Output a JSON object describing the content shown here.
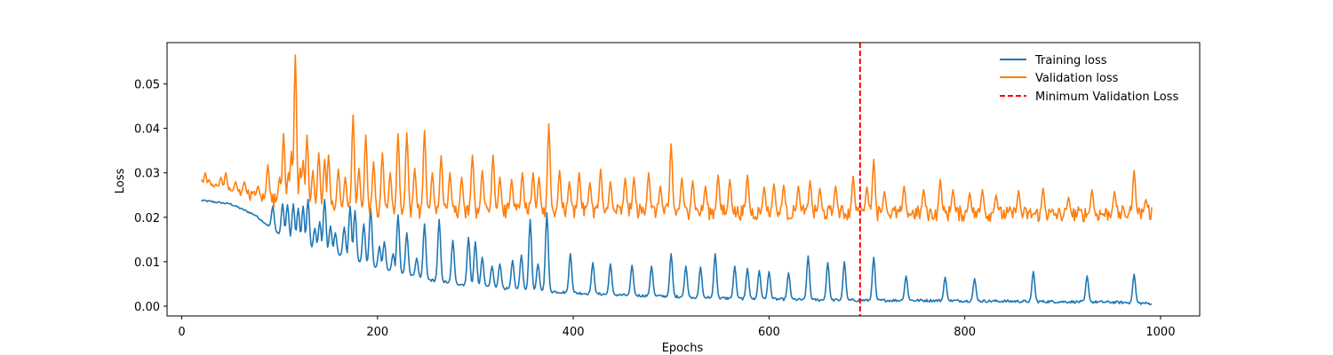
{
  "chart_data": {
    "type": "line",
    "title": "",
    "xlabel": "Epochs",
    "ylabel": "Loss",
    "xlim": [
      -15,
      1040
    ],
    "ylim": [
      -0.0022,
      0.0593
    ],
    "xticks": [
      0,
      200,
      400,
      600,
      800,
      1000
    ],
    "yticks": [
      0.0,
      0.01,
      0.02,
      0.03,
      0.04,
      0.05
    ],
    "xtick_labels": [
      "0",
      "200",
      "400",
      "600",
      "800",
      "1000"
    ],
    "ytick_labels": [
      "0.00",
      "0.01",
      "0.02",
      "0.03",
      "0.04",
      "0.05"
    ],
    "grid": false,
    "legend_position": "top-right",
    "x_range": [
      20,
      991
    ],
    "series": [
      {
        "name": "Training loss",
        "color": "#1f77b4",
        "style": "solid",
        "anchors": [
          [
            20,
            0.0238
          ],
          [
            50,
            0.023
          ],
          [
            75,
            0.0205
          ],
          [
            100,
            0.016
          ],
          [
            130,
            0.013
          ],
          [
            160,
            0.0115
          ],
          [
            200,
            0.0085
          ],
          [
            250,
            0.006
          ],
          [
            300,
            0.0045
          ],
          [
            350,
            0.0037
          ],
          [
            400,
            0.003
          ],
          [
            450,
            0.0025
          ],
          [
            500,
            0.0022
          ],
          [
            550,
            0.0018
          ],
          [
            600,
            0.0016
          ],
          [
            650,
            0.0014
          ],
          [
            700,
            0.0013
          ],
          [
            750,
            0.0013
          ],
          [
            800,
            0.0012
          ],
          [
            850,
            0.0011
          ],
          [
            900,
            0.001
          ],
          [
            950,
            0.0009
          ],
          [
            991,
            0.0006
          ]
        ],
        "spikes": [
          [
            93,
            0.0225
          ],
          [
            103,
            0.023
          ],
          [
            108,
            0.0228
          ],
          [
            114,
            0.023
          ],
          [
            119,
            0.022
          ],
          [
            124,
            0.0225
          ],
          [
            129,
            0.024
          ],
          [
            136,
            0.0175
          ],
          [
            141,
            0.019
          ],
          [
            146,
            0.024
          ],
          [
            152,
            0.018
          ],
          [
            157,
            0.0165
          ],
          [
            166,
            0.0178
          ],
          [
            172,
            0.0225
          ],
          [
            177,
            0.0215
          ],
          [
            186,
            0.0185
          ],
          [
            193,
            0.022
          ],
          [
            202,
            0.0135
          ],
          [
            207,
            0.0145
          ],
          [
            216,
            0.0118
          ],
          [
            221,
            0.0205
          ],
          [
            230,
            0.0165
          ],
          [
            240,
            0.0108
          ],
          [
            248,
            0.0185
          ],
          [
            263,
            0.0195
          ],
          [
            277,
            0.0148
          ],
          [
            293,
            0.0155
          ],
          [
            300,
            0.0145
          ],
          [
            307,
            0.011
          ],
          [
            317,
            0.009
          ],
          [
            325,
            0.0095
          ],
          [
            338,
            0.0103
          ],
          [
            347,
            0.0115
          ],
          [
            356,
            0.0195
          ],
          [
            364,
            0.0095
          ],
          [
            373,
            0.021
          ],
          [
            397,
            0.0118
          ],
          [
            420,
            0.0098
          ],
          [
            438,
            0.0095
          ],
          [
            460,
            0.0092
          ],
          [
            480,
            0.009
          ],
          [
            500,
            0.0118
          ],
          [
            515,
            0.009
          ],
          [
            530,
            0.0088
          ],
          [
            545,
            0.0118
          ],
          [
            565,
            0.009
          ],
          [
            578,
            0.0085
          ],
          [
            590,
            0.008
          ],
          [
            600,
            0.0078
          ],
          [
            620,
            0.0075
          ],
          [
            640,
            0.0113
          ],
          [
            660,
            0.0098
          ],
          [
            677,
            0.01
          ],
          [
            707,
            0.011
          ],
          [
            740,
            0.0068
          ],
          [
            780,
            0.0065
          ],
          [
            810,
            0.0062
          ],
          [
            870,
            0.0078
          ],
          [
            925,
            0.0068
          ],
          [
            973,
            0.0072
          ]
        ]
      },
      {
        "name": "Validation loss",
        "color": "#ff7f0e",
        "style": "solid",
        "anchors": [
          [
            20,
            0.027
          ],
          [
            60,
            0.0255
          ],
          [
            80,
            0.0245
          ],
          [
            110,
            0.023
          ],
          [
            140,
            0.0222
          ],
          [
            200,
            0.0215
          ],
          [
            300,
            0.0215
          ],
          [
            400,
            0.0215
          ],
          [
            500,
            0.0213
          ],
          [
            600,
            0.021
          ],
          [
            700,
            0.021
          ],
          [
            800,
            0.0208
          ],
          [
            900,
            0.0206
          ],
          [
            991,
            0.021
          ]
        ],
        "spikes": [
          [
            20,
            0.0285
          ],
          [
            24,
            0.03
          ],
          [
            28,
            0.0285
          ],
          [
            35,
            0.0275
          ],
          [
            40,
            0.029
          ],
          [
            45,
            0.03
          ],
          [
            55,
            0.028
          ],
          [
            64,
            0.028
          ],
          [
            78,
            0.027
          ],
          [
            88,
            0.0318
          ],
          [
            100,
            0.029
          ],
          [
            104,
            0.0388
          ],
          [
            109,
            0.03
          ],
          [
            112,
            0.0348
          ],
          [
            116,
            0.0565
          ],
          [
            121,
            0.031
          ],
          [
            124,
            0.0328
          ],
          [
            128,
            0.0385
          ],
          [
            134,
            0.0305
          ],
          [
            140,
            0.0345
          ],
          [
            146,
            0.033
          ],
          [
            150,
            0.034
          ],
          [
            160,
            0.0308
          ],
          [
            167,
            0.029
          ],
          [
            175,
            0.043
          ],
          [
            181,
            0.031
          ],
          [
            188,
            0.0385
          ],
          [
            196,
            0.0325
          ],
          [
            205,
            0.0345
          ],
          [
            213,
            0.03
          ],
          [
            221,
            0.0388
          ],
          [
            230,
            0.039
          ],
          [
            238,
            0.031
          ],
          [
            248,
            0.0395
          ],
          [
            256,
            0.03
          ],
          [
            265,
            0.0338
          ],
          [
            274,
            0.03
          ],
          [
            286,
            0.029
          ],
          [
            297,
            0.034
          ],
          [
            307,
            0.0305
          ],
          [
            318,
            0.034
          ],
          [
            325,
            0.029
          ],
          [
            337,
            0.0285
          ],
          [
            348,
            0.03
          ],
          [
            359,
            0.03
          ],
          [
            365,
            0.029
          ],
          [
            375,
            0.041
          ],
          [
            386,
            0.0305
          ],
          [
            396,
            0.028
          ],
          [
            406,
            0.03
          ],
          [
            417,
            0.0278
          ],
          [
            428,
            0.0308
          ],
          [
            438,
            0.028
          ],
          [
            453,
            0.0288
          ],
          [
            462,
            0.029
          ],
          [
            477,
            0.03
          ],
          [
            489,
            0.027
          ],
          [
            500,
            0.0365
          ],
          [
            511,
            0.0288
          ],
          [
            522,
            0.0282
          ],
          [
            535,
            0.027
          ],
          [
            548,
            0.0295
          ],
          [
            560,
            0.0285
          ],
          [
            578,
            0.0295
          ],
          [
            595,
            0.0268
          ],
          [
            605,
            0.0275
          ],
          [
            615,
            0.0272
          ],
          [
            630,
            0.027
          ],
          [
            642,
            0.0282
          ],
          [
            652,
            0.0265
          ],
          [
            668,
            0.027
          ],
          [
            686,
            0.0292
          ],
          [
            693,
            0.0225
          ],
          [
            700,
            0.0268
          ],
          [
            707,
            0.033
          ],
          [
            718,
            0.0258
          ],
          [
            738,
            0.027
          ],
          [
            758,
            0.0262
          ],
          [
            775,
            0.0285
          ],
          [
            788,
            0.0262
          ],
          [
            805,
            0.0255
          ],
          [
            818,
            0.0262
          ],
          [
            832,
            0.025
          ],
          [
            855,
            0.026
          ],
          [
            880,
            0.0265
          ],
          [
            906,
            0.0245
          ],
          [
            930,
            0.0262
          ],
          [
            953,
            0.0258
          ],
          [
            973,
            0.0305
          ],
          [
            985,
            0.024
          ]
        ]
      },
      {
        "name": "Minimum Validation Loss",
        "color": "#ff0000",
        "style": "dashed",
        "x": 693
      }
    ]
  }
}
